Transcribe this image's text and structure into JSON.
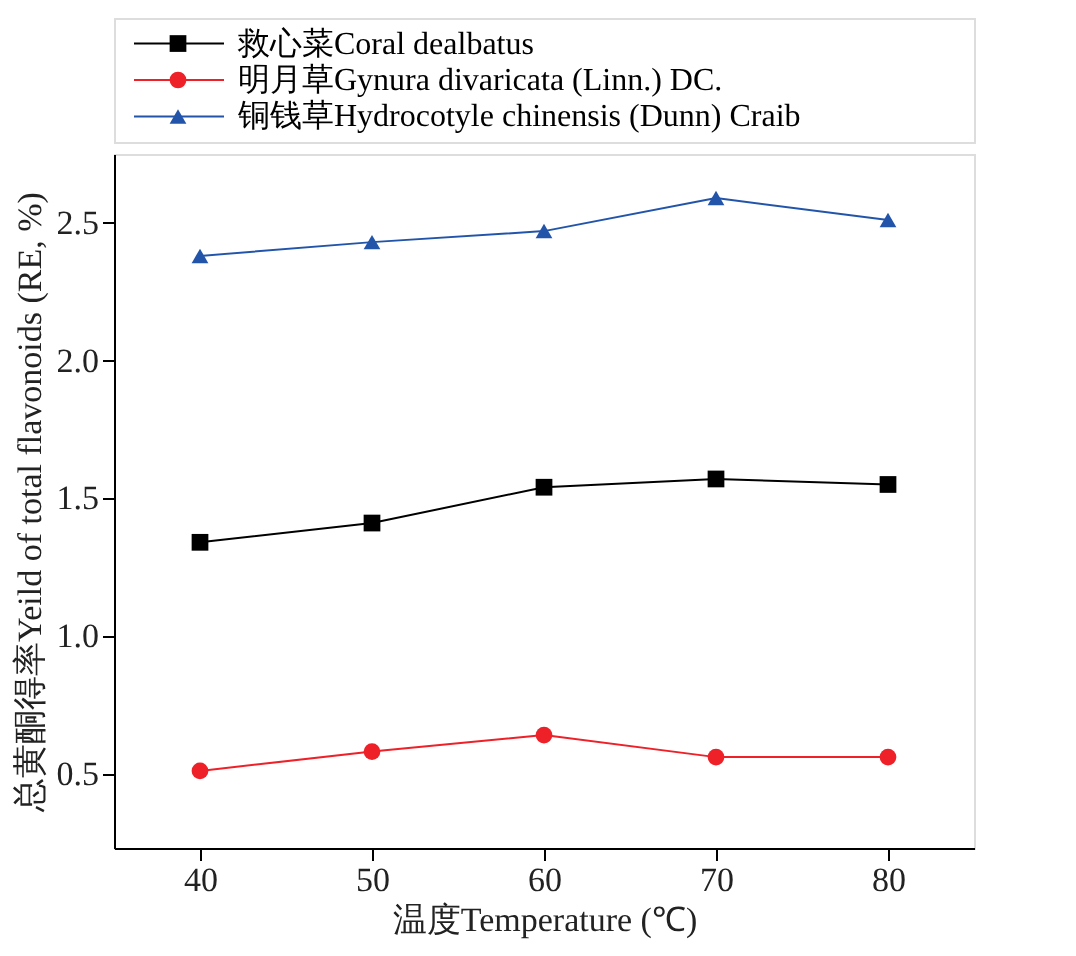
{
  "chart_data": {
    "type": "line",
    "xlabel": "温度Temperature (℃)",
    "ylabel": "总黄酮得率Yeild of total flavonoids (RE, %)",
    "x": [
      40,
      50,
      60,
      70,
      80
    ],
    "xlim": [
      35,
      85
    ],
    "xticks": [
      40,
      50,
      60,
      70,
      80
    ],
    "ylim": [
      0.23,
      2.75
    ],
    "yticks": [
      {
        "value": 0.5,
        "label": "0.5"
      },
      {
        "value": 1.0,
        "label": "1.0"
      },
      {
        "value": 1.5,
        "label": "1.5"
      },
      {
        "value": 2.0,
        "label": "2.0"
      },
      {
        "value": 2.5,
        "label": "2.5"
      }
    ],
    "grid": false,
    "legend": "top left",
    "line_style": "solid",
    "series": [
      {
        "name": "救心菜Coral dealbatus",
        "color": "#000000",
        "marker": "square",
        "values": [
          1.34,
          1.41,
          1.54,
          1.57,
          1.55
        ]
      },
      {
        "name": "明月草Gynura divaricata (Linn.) DC.",
        "color": "#ee2028",
        "marker": "circle",
        "values": [
          0.51,
          0.58,
          0.64,
          0.56,
          0.56
        ]
      },
      {
        "name": "铜钱草Hydrocotyle chinensis (Dunn) Craib",
        "color": "#2255aa",
        "marker": "triangle",
        "values": [
          2.38,
          2.43,
          2.47,
          2.59,
          2.51
        ]
      }
    ]
  }
}
